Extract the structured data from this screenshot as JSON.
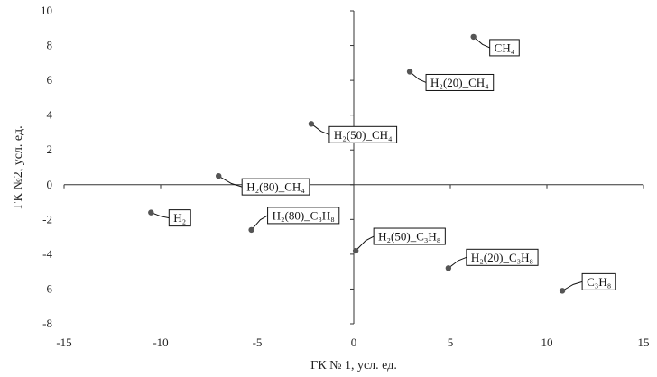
{
  "chart_data": {
    "type": "scatter",
    "xlabel": "ГК № 1, усл. ед.",
    "ylabel": "ГК №2, усл. ед.",
    "xlim": [
      -15,
      15
    ],
    "ylim": [
      -8,
      10
    ],
    "xticks": [
      -15,
      -10,
      -5,
      0,
      5,
      10,
      15
    ],
    "yticks": [
      -8,
      -6,
      -4,
      -2,
      0,
      2,
      4,
      6,
      8,
      10
    ],
    "grid": false,
    "points": [
      {
        "label": "CH₄",
        "x": 6.2,
        "y": 8.5
      },
      {
        "label": "H₂(20)_CH₄",
        "x": 2.9,
        "y": 6.5
      },
      {
        "label": "H₂(50)_CH₄",
        "x": -2.2,
        "y": 3.5
      },
      {
        "label": "H₂(80)_CH₄",
        "x": -7.0,
        "y": 0.5
      },
      {
        "label": "H₂",
        "x": -10.5,
        "y": -1.6
      },
      {
        "label": "H₂(80)_C₃H₈",
        "x": -5.3,
        "y": -2.6
      },
      {
        "label": "H₂(50)_C₃H₈",
        "x": 0.1,
        "y": -3.8
      },
      {
        "label": "H₂(20)_C₃H₈",
        "x": 4.9,
        "y": -4.8
      },
      {
        "label": "C₃H₈",
        "x": 10.8,
        "y": -6.1
      }
    ],
    "marker_color": "#555555"
  }
}
